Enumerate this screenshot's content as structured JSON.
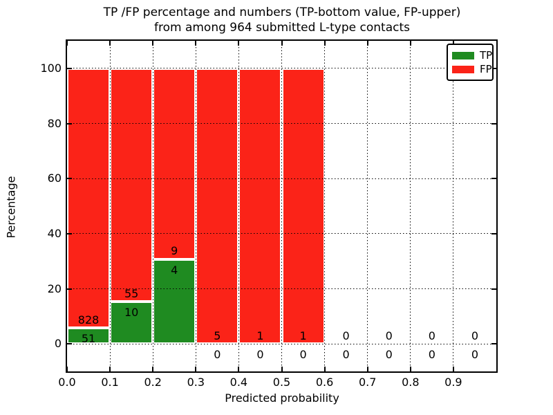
{
  "chart_data": {
    "type": "bar",
    "stacked": true,
    "title_lines": [
      "TP /FP percentage and numbers (TP-bottom value, FP-upper)",
      "from among 964 submitted L-type contacts"
    ],
    "total_submitted": 964,
    "xlabel": "Predicted probability",
    "ylabel": "Percentage",
    "xlim": [
      0.0,
      1.0
    ],
    "ylim": [
      -10,
      110
    ],
    "xticks": [
      "0.0",
      "0.1",
      "0.2",
      "0.3",
      "0.4",
      "0.5",
      "0.6",
      "0.7",
      "0.8",
      "0.9"
    ],
    "yticks": [
      0,
      20,
      40,
      60,
      80,
      100
    ],
    "grid": true,
    "grid_style": "dotted",
    "legend": {
      "position": "upper right",
      "entries": [
        {
          "label": "TP",
          "color": "#1f8b21"
        },
        {
          "label": "FP",
          "color": "#fb2318"
        }
      ]
    },
    "colors": {
      "tp": "#1f8b21",
      "fp": "#fb2318",
      "bar_edge": "#ffffff",
      "text": "#000000",
      "background": "#ffffff"
    },
    "bins": [
      {
        "range": [
          0.0,
          0.1
        ],
        "tp": 51,
        "fp": 828,
        "tp_pct": 5.8,
        "fp_pct": 94.2,
        "bar": true
      },
      {
        "range": [
          0.1,
          0.2
        ],
        "tp": 10,
        "fp": 55,
        "tp_pct": 15.38,
        "fp_pct": 84.62,
        "bar": true
      },
      {
        "range": [
          0.2,
          0.3
        ],
        "tp": 4,
        "fp": 9,
        "tp_pct": 30.77,
        "fp_pct": 69.23,
        "bar": true
      },
      {
        "range": [
          0.3,
          0.4
        ],
        "tp": 0,
        "fp": 5,
        "tp_pct": 0,
        "fp_pct": 100,
        "bar": true
      },
      {
        "range": [
          0.4,
          0.5
        ],
        "tp": 0,
        "fp": 1,
        "tp_pct": 0,
        "fp_pct": 100,
        "bar": true
      },
      {
        "range": [
          0.5,
          0.6
        ],
        "tp": 0,
        "fp": 1,
        "tp_pct": 0,
        "fp_pct": 100,
        "bar": true
      },
      {
        "range": [
          0.6,
          0.7
        ],
        "tp": 0,
        "fp": 0,
        "tp_pct": 0,
        "fp_pct": 0,
        "bar": false
      },
      {
        "range": [
          0.7,
          0.8
        ],
        "tp": 0,
        "fp": 0,
        "tp_pct": 0,
        "fp_pct": 0,
        "bar": false
      },
      {
        "range": [
          0.8,
          0.9
        ],
        "tp": 0,
        "fp": 0,
        "tp_pct": 0,
        "fp_pct": 0,
        "bar": false
      },
      {
        "range": [
          0.9,
          1.0
        ],
        "tp": 0,
        "fp": 0,
        "tp_pct": 0,
        "fp_pct": 0,
        "bar": false
      }
    ]
  }
}
